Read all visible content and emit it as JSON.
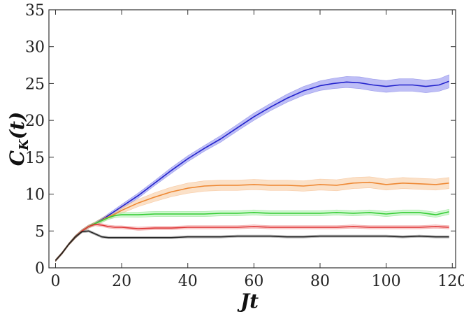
{
  "chart_data": {
    "type": "line",
    "title": "",
    "xlabel": "Jt",
    "ylabel": "C_K(t)",
    "ylabel_parts": {
      "main": "C",
      "sub": "Κ",
      "arg": "(t)"
    },
    "xlim": [
      -2,
      121
    ],
    "ylim": [
      0,
      35
    ],
    "xticks": [
      0,
      20,
      40,
      60,
      80,
      100,
      120
    ],
    "yticks": [
      0,
      5,
      10,
      15,
      20,
      25,
      30,
      35
    ],
    "grid": false,
    "legend": "none",
    "series": [
      {
        "color": "#2222cc",
        "band_color": "#8888ee",
        "x": [
          0,
          2,
          4,
          6,
          8,
          10,
          12,
          15,
          20,
          25,
          30,
          35,
          40,
          45,
          50,
          55,
          60,
          65,
          70,
          75,
          80,
          84,
          88,
          92,
          96,
          100,
          104,
          108,
          112,
          116,
          119
        ],
        "values": [
          1.0,
          2.0,
          3.2,
          4.2,
          5.0,
          5.6,
          6.0,
          6.8,
          8.3,
          9.8,
          11.5,
          13.2,
          14.8,
          16.2,
          17.5,
          19.0,
          20.5,
          21.8,
          23.0,
          24.0,
          24.7,
          25.0,
          25.2,
          25.1,
          24.8,
          24.6,
          24.8,
          24.8,
          24.6,
          24.8,
          25.3
        ],
        "band": [
          0.15,
          0.15,
          0.15,
          0.2,
          0.2,
          0.2,
          0.2,
          0.25,
          0.3,
          0.35,
          0.35,
          0.4,
          0.4,
          0.4,
          0.45,
          0.45,
          0.5,
          0.5,
          0.55,
          0.6,
          0.65,
          0.7,
          0.75,
          0.8,
          0.8,
          0.8,
          0.85,
          0.85,
          0.85,
          0.85,
          0.9
        ]
      },
      {
        "color": "#ee8833",
        "band_color": "#f8c89a",
        "x": [
          0,
          2,
          4,
          6,
          8,
          10,
          12,
          15,
          18,
          20,
          25,
          30,
          35,
          40,
          45,
          50,
          55,
          60,
          65,
          70,
          75,
          80,
          85,
          90,
          95,
          100,
          105,
          110,
          115,
          119
        ],
        "values": [
          1.0,
          2.0,
          3.2,
          4.2,
          5.0,
          5.6,
          6.0,
          6.7,
          7.3,
          7.8,
          8.8,
          9.6,
          10.3,
          10.8,
          11.1,
          11.2,
          11.2,
          11.3,
          11.2,
          11.2,
          11.1,
          11.3,
          11.2,
          11.5,
          11.6,
          11.3,
          11.5,
          11.4,
          11.3,
          11.5
        ],
        "band": [
          0.15,
          0.15,
          0.15,
          0.2,
          0.2,
          0.2,
          0.25,
          0.3,
          0.35,
          0.4,
          0.5,
          0.6,
          0.65,
          0.7,
          0.7,
          0.7,
          0.7,
          0.7,
          0.7,
          0.7,
          0.7,
          0.75,
          0.75,
          0.75,
          0.75,
          0.75,
          0.75,
          0.75,
          0.75,
          0.75
        ]
      },
      {
        "color": "#33cc33",
        "band_color": "#aaf0aa",
        "x": [
          0,
          2,
          4,
          6,
          8,
          10,
          12,
          14,
          16,
          18,
          20,
          25,
          30,
          35,
          40,
          45,
          50,
          55,
          60,
          65,
          70,
          75,
          80,
          85,
          90,
          95,
          100,
          105,
          110,
          115,
          119
        ],
        "values": [
          1.0,
          2.0,
          3.2,
          4.2,
          5.0,
          5.6,
          6.0,
          6.4,
          6.8,
          7.1,
          7.2,
          7.2,
          7.3,
          7.3,
          7.3,
          7.3,
          7.4,
          7.4,
          7.5,
          7.4,
          7.4,
          7.4,
          7.4,
          7.5,
          7.4,
          7.5,
          7.3,
          7.5,
          7.5,
          7.2,
          7.6
        ],
        "band": [
          0.15,
          0.15,
          0.15,
          0.2,
          0.2,
          0.2,
          0.2,
          0.25,
          0.25,
          0.3,
          0.3,
          0.35,
          0.35,
          0.35,
          0.35,
          0.35,
          0.35,
          0.35,
          0.35,
          0.35,
          0.35,
          0.35,
          0.35,
          0.35,
          0.35,
          0.35,
          0.35,
          0.35,
          0.35,
          0.35,
          0.35
        ]
      },
      {
        "color": "#dd3333",
        "band_color": "#f5a0a0",
        "x": [
          0,
          2,
          4,
          6,
          8,
          10,
          12,
          14,
          16,
          18,
          20,
          25,
          30,
          35,
          40,
          45,
          50,
          55,
          60,
          65,
          70,
          75,
          80,
          85,
          90,
          95,
          100,
          105,
          110,
          115,
          119
        ],
        "values": [
          1.0,
          2.0,
          3.2,
          4.2,
          5.0,
          5.6,
          5.9,
          5.8,
          5.6,
          5.5,
          5.5,
          5.3,
          5.4,
          5.4,
          5.5,
          5.5,
          5.5,
          5.5,
          5.6,
          5.5,
          5.5,
          5.5,
          5.5,
          5.5,
          5.6,
          5.5,
          5.5,
          5.5,
          5.5,
          5.6,
          5.5
        ],
        "band": [
          0.15,
          0.15,
          0.15,
          0.2,
          0.2,
          0.2,
          0.2,
          0.2,
          0.2,
          0.2,
          0.2,
          0.22,
          0.22,
          0.22,
          0.22,
          0.22,
          0.22,
          0.22,
          0.22,
          0.22,
          0.22,
          0.22,
          0.22,
          0.22,
          0.22,
          0.22,
          0.22,
          0.22,
          0.22,
          0.22,
          0.22
        ]
      },
      {
        "color": "#222222",
        "band_color": "#aaaaaa",
        "x": [
          0,
          2,
          4,
          6,
          8,
          10,
          12,
          14,
          16,
          18,
          20,
          25,
          30,
          35,
          40,
          45,
          50,
          55,
          60,
          65,
          70,
          75,
          80,
          85,
          90,
          95,
          100,
          105,
          110,
          115,
          119
        ],
        "values": [
          1.0,
          2.0,
          3.2,
          4.2,
          4.9,
          5.0,
          4.6,
          4.2,
          4.1,
          4.1,
          4.1,
          4.1,
          4.1,
          4.1,
          4.2,
          4.2,
          4.2,
          4.3,
          4.3,
          4.3,
          4.2,
          4.2,
          4.3,
          4.3,
          4.3,
          4.3,
          4.3,
          4.2,
          4.3,
          4.2,
          4.2
        ],
        "band": [
          0.12,
          0.12,
          0.12,
          0.15,
          0.15,
          0.15,
          0.15,
          0.15,
          0.15,
          0.15,
          0.15,
          0.15,
          0.15,
          0.15,
          0.15,
          0.15,
          0.15,
          0.15,
          0.15,
          0.15,
          0.15,
          0.15,
          0.15,
          0.15,
          0.15,
          0.15,
          0.15,
          0.15,
          0.15,
          0.15,
          0.15
        ]
      }
    ]
  }
}
